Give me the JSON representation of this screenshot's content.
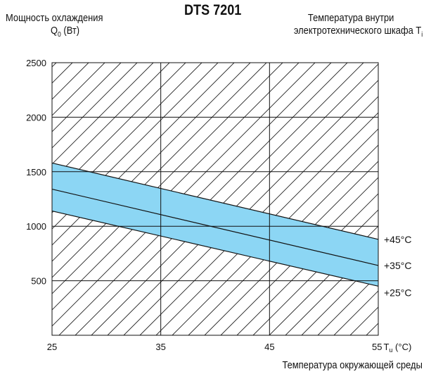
{
  "header": {
    "title": "DTS 7201",
    "ylabel_line1": "Мощность охлаждения",
    "ylabel_line2": "Q",
    "ylabel_sub": "0",
    "ylabel_unit": " (Вт)",
    "right_line1": "Температура внутри",
    "right_line2": "электротехнического шкафа T",
    "right_sub": "i",
    "xlabel": "Температура окружающей среды"
  },
  "chart_data": {
    "type": "line",
    "title": "DTS 7201",
    "xlabel": "Температура окружающей среды",
    "ylabel": "Мощность охлаждения Q0 (Вт)",
    "xlim": [
      25,
      55
    ],
    "ylim": [
      0,
      2500
    ],
    "x_ticks": [
      "25",
      "35",
      "45",
      "55"
    ],
    "x_tick_suffix": "T",
    "x_tick_suffix_sub": "u",
    "x_tick_unit": " (°C)",
    "y_ticks": [
      "2500",
      "2000",
      "1500",
      "1000",
      "500"
    ],
    "grid": true,
    "hatched_background": true,
    "band_color": "#8cd6f4",
    "series": [
      {
        "name": "+45°C",
        "x": [
          25,
          55
        ],
        "y": [
          1580,
          880
        ]
      },
      {
        "name": "+35°C",
        "x": [
          25,
          55
        ],
        "y": [
          1340,
          640
        ]
      },
      {
        "name": "+25°C",
        "x": [
          25,
          55
        ],
        "y": [
          1140,
          450
        ]
      }
    ]
  }
}
